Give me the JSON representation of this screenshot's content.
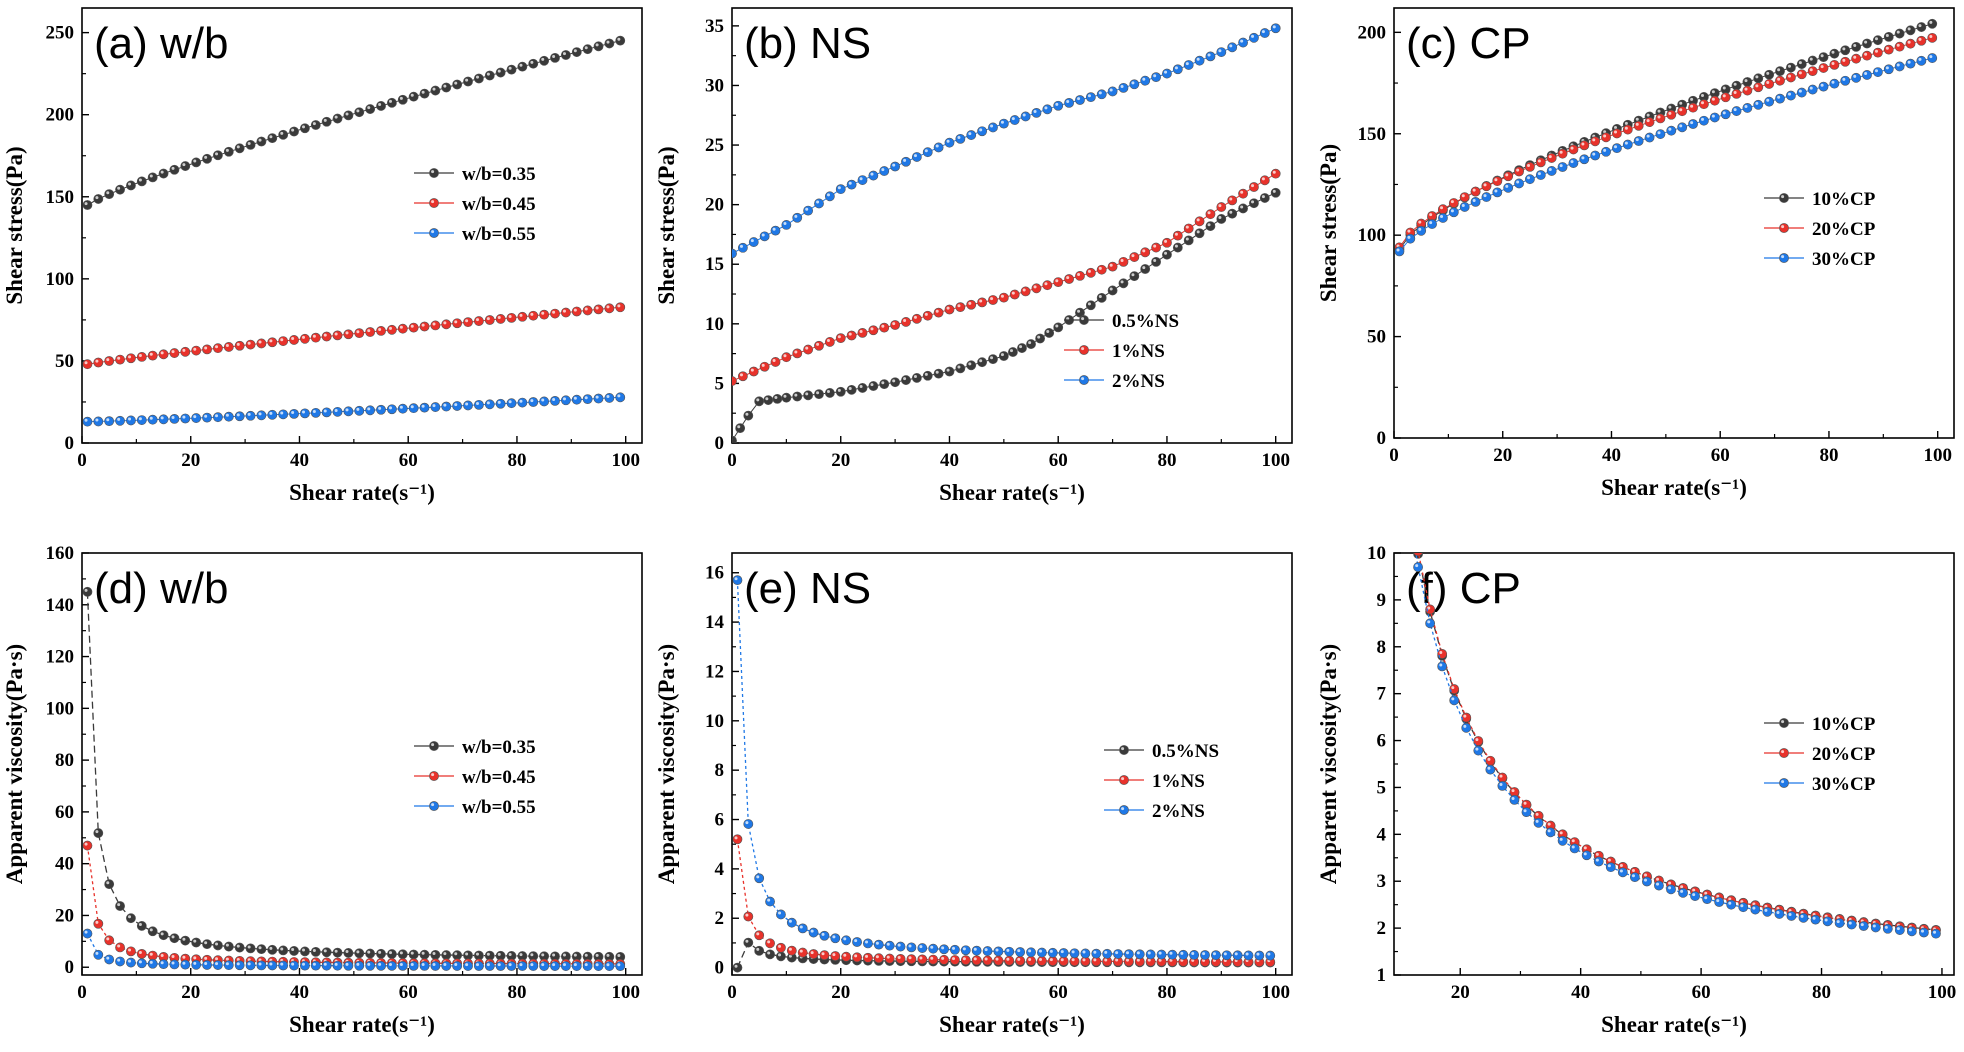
{
  "colors": {
    "black": "#3a3a3a",
    "red": "#e8322b",
    "blue": "#1f78e6",
    "frame": "#000000"
  },
  "chart_data": [
    {
      "id": "a",
      "type": "scatter",
      "title": "(a) w/b",
      "xlabel": "Shear rate(s⁻¹)",
      "ylabel": "Shear stress(Pa)",
      "xlim": [
        0,
        103
      ],
      "ylim": [
        0,
        265
      ],
      "xticks": [
        0,
        20,
        40,
        60,
        80,
        100
      ],
      "yticks": [
        0,
        50,
        100,
        150,
        200,
        250
      ],
      "legend_position": "center-right",
      "series": [
        {
          "name": "w/b=0.35",
          "color": "black",
          "model": "power",
          "y0": 145,
          "y1": 246,
          "p": 0.85
        },
        {
          "name": "w/b=0.45",
          "color": "red",
          "model": "power",
          "y0": 48,
          "y1": 83,
          "p": 0.9
        },
        {
          "name": "w/b=0.55",
          "color": "blue",
          "model": "power",
          "y0": 13,
          "y1": 28,
          "p": 1.2
        }
      ]
    },
    {
      "id": "b",
      "type": "scatter",
      "title": "(b) NS",
      "xlabel": "Shear rate(s⁻¹)",
      "ylabel": "Shear stress(Pa)",
      "xlim": [
        0,
        103
      ],
      "ylim": [
        0,
        36.5
      ],
      "xticks": [
        0,
        20,
        40,
        60,
        80,
        100
      ],
      "yticks": [
        0,
        5,
        10,
        15,
        20,
        25,
        30,
        35
      ],
      "legend_position": "bottom-right",
      "series": [
        {
          "name": "0.5%NS",
          "color": "black",
          "model": "points",
          "x": [
            0,
            3,
            5,
            10,
            20,
            30,
            40,
            50,
            55,
            60,
            70,
            80,
            90,
            100
          ],
          "y": [
            0.2,
            2.3,
            3.5,
            3.8,
            4.3,
            5.1,
            6.0,
            7.3,
            8.3,
            9.7,
            12.8,
            15.8,
            18.8,
            21
          ]
        },
        {
          "name": "1%NS",
          "color": "red",
          "model": "points",
          "x": [
            0,
            10,
            20,
            30,
            40,
            50,
            60,
            70,
            80,
            90,
            100
          ],
          "y": [
            5.2,
            7.2,
            8.8,
            9.9,
            11.2,
            12.2,
            13.5,
            14.8,
            16.8,
            19.8,
            22.6
          ]
        },
        {
          "name": "2%NS",
          "color": "blue",
          "model": "points",
          "x": [
            0,
            10,
            20,
            30,
            40,
            50,
            60,
            70,
            80,
            90,
            100
          ],
          "y": [
            15.9,
            18.3,
            21.3,
            23.2,
            25.2,
            26.8,
            28.3,
            29.5,
            31.0,
            32.8,
            34.8
          ]
        }
      ]
    },
    {
      "id": "c",
      "type": "scatter",
      "title": "(c) CP",
      "xlabel": "Shear rate(s⁻¹)",
      "ylabel": "Shear stress(Pa)",
      "xlim": [
        0,
        103
      ],
      "ylim": [
        0,
        212
      ],
      "xticks": [
        0,
        20,
        40,
        60,
        80,
        100
      ],
      "yticks": [
        0,
        50,
        100,
        150,
        200
      ],
      "legend_position": "center-right",
      "series": [
        {
          "name": "10%CP",
          "color": "black",
          "model": "power",
          "y0": 93,
          "y1": 205,
          "p": 0.7
        },
        {
          "name": "20%CP",
          "color": "red",
          "model": "power",
          "y0": 94,
          "y1": 198,
          "p": 0.68
        },
        {
          "name": "30%CP",
          "color": "blue",
          "model": "power",
          "y0": 92,
          "y1": 188,
          "p": 0.7
        }
      ]
    },
    {
      "id": "d",
      "type": "scatter",
      "title": "(d) w/b",
      "xlabel": "Shear rate(s⁻¹)",
      "ylabel": "Apparent viscosity(Pa·s)",
      "xlim": [
        0,
        103
      ],
      "ylim": [
        -3,
        160
      ],
      "xticks": [
        0,
        20,
        40,
        60,
        80,
        100
      ],
      "yticks": [
        0,
        20,
        40,
        60,
        80,
        100,
        120,
        140,
        160
      ],
      "legend_position": "center-right",
      "series": [
        {
          "name": "w/b=0.35",
          "color": "black",
          "model": "viscosity",
          "k": 148,
          "floor": 2.5,
          "first": 145
        },
        {
          "name": "w/b=0.45",
          "color": "red",
          "model": "viscosity",
          "k": 48,
          "floor": 0.8,
          "first": 47
        },
        {
          "name": "w/b=0.55",
          "color": "blue",
          "model": "viscosity",
          "k": 13.5,
          "floor": 0.3,
          "first": 13
        }
      ]
    },
    {
      "id": "e",
      "type": "scatter",
      "title": "(e) NS",
      "xlabel": "Shear rate(s⁻¹)",
      "ylabel": "Apparent viscosity(Pa·s)",
      "xlim": [
        0,
        103
      ],
      "ylim": [
        -0.3,
        16.8
      ],
      "xticks": [
        0,
        20,
        40,
        60,
        80,
        100
      ],
      "yticks": [
        0,
        2,
        4,
        6,
        8,
        10,
        12,
        14,
        16
      ],
      "legend_position": "center-right",
      "series": [
        {
          "name": "0.5%NS",
          "color": "black",
          "model": "viscosity",
          "k": 2.5,
          "floor": 0.18,
          "first": 0.0
        },
        {
          "name": "1%NS",
          "color": "red",
          "model": "viscosity",
          "k": 5.7,
          "floor": 0.17,
          "first": 5.2
        },
        {
          "name": "2%NS",
          "color": "blue",
          "model": "viscosity",
          "k": 16.5,
          "floor": 0.32,
          "first": 15.7
        }
      ]
    },
    {
      "id": "f",
      "type": "scatter",
      "title": "(f) CP",
      "xlabel": "Shear rate(s⁻¹)",
      "ylabel": "Apparent viscosity(Pa·s)",
      "xlim": [
        9,
        102
      ],
      "ylim": [
        1,
        10
      ],
      "xticks": [
        20,
        40,
        60,
        80,
        100
      ],
      "yticks": [
        1,
        2,
        3,
        4,
        5,
        6,
        7,
        8,
        9,
        10
      ],
      "legend_position": "center-right",
      "series": [
        {
          "name": "10%CP",
          "color": "black",
          "model": "viscosity",
          "k": 120,
          "floor": 0.75,
          "first": null
        },
        {
          "name": "20%CP",
          "color": "red",
          "model": "viscosity",
          "k": 121,
          "floor": 0.73,
          "first": null
        },
        {
          "name": "30%CP",
          "color": "blue",
          "model": "viscosity",
          "k": 117,
          "floor": 0.7,
          "first": null
        }
      ]
    }
  ]
}
